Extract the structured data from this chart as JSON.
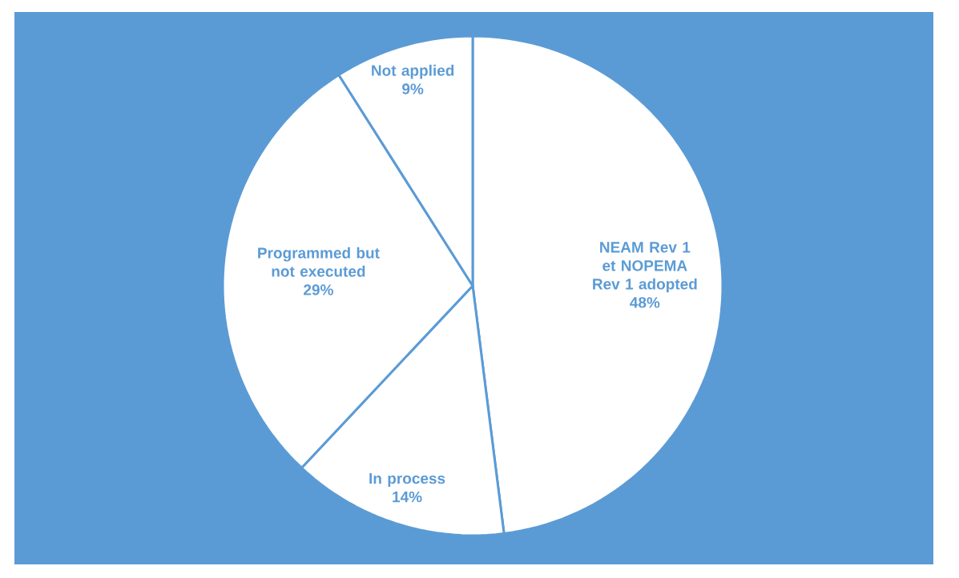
{
  "chart_data": {
    "type": "pie",
    "categories": [
      "NEAM Rev 1 et NOPEMA Rev 1 adopted",
      "In process",
      "Programmed but not executed",
      "Not applied"
    ],
    "values": [
      48,
      14,
      29,
      9
    ],
    "colors": [
      "#ffffff",
      "#ffffff",
      "#ffffff",
      "#ffffff"
    ],
    "value_labels": [
      "48%",
      "14%",
      "29%",
      "9%"
    ]
  }
}
